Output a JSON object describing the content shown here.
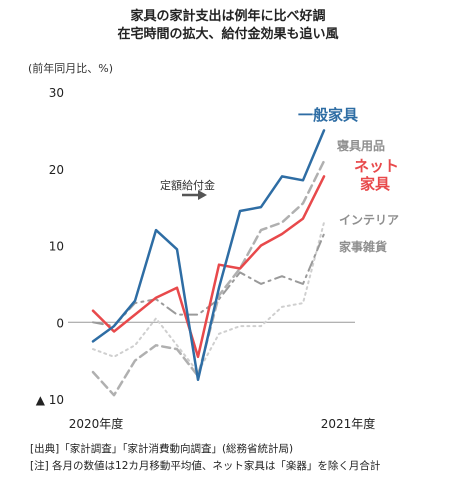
{
  "title_line1": "家具の家計支出は例年に比べ好調",
  "title_line2": "在宅時間の拡大、給付金効果も追い風",
  "unit_label": "(前年同月比、%)",
  "annotation": "定額給付金",
  "source_note": "[出典]「家計調査」「家計消費動向調査」(総務省統計局)",
  "footnote": "[注] 各月の数値は12カ月移動平均値、ネット家具は「楽器」を除く月合計",
  "chart_data": {
    "type": "line",
    "title": "家具の家計支出は例年に比べ好調 在宅時間の拡大、給付金効果も追い風",
    "ylabel": "(前年同月比、%)",
    "ylim": [
      -10,
      30
    ],
    "yticks": [
      {
        "value": 30,
        "label": "30"
      },
      {
        "value": 20,
        "label": "20"
      },
      {
        "value": 10,
        "label": "10"
      },
      {
        "value": 0,
        "label": "0"
      },
      {
        "value": -10,
        "label": "▲ 10"
      }
    ],
    "x_labels": [
      {
        "index": 1,
        "label": "2020年度"
      },
      {
        "index": 13,
        "label": "2021年度"
      }
    ],
    "x_count": 14,
    "grid": false,
    "series": [
      {
        "name": "一般家具",
        "color": "#2E6DA4",
        "style": "solid",
        "width": 2.5,
        "values": [
          -2.5,
          -0.5,
          2.8,
          12,
          9.5,
          -7.5,
          4.5,
          14.5,
          15,
          19,
          18.5,
          25
        ]
      },
      {
        "name": "寝具用品",
        "color": "#b0b0b0",
        "style": "dash",
        "width": 2.5,
        "values": [
          -6.5,
          -9.5,
          -5,
          -3,
          -3.5,
          -7,
          3.5,
          7,
          12,
          13,
          15.5,
          21
        ]
      },
      {
        "name": "ネット家具",
        "color": "#E8494B",
        "style": "solid",
        "width": 2.5,
        "values": [
          1.5,
          -1.2,
          1,
          3.2,
          4.5,
          -4.5,
          7.5,
          7,
          10,
          11.5,
          13.5,
          19
        ]
      },
      {
        "name": "インテリア",
        "color": "#cfcfcf",
        "style": "dot",
        "width": 2,
        "values": [
          -3.5,
          -4.5,
          -3,
          0.5,
          -3,
          -6.5,
          -1.5,
          -0.5,
          -0.5,
          2,
          2.5,
          13
        ]
      },
      {
        "name": "家事雑貨",
        "color": "#9a9a9a",
        "style": "dashdot",
        "width": 2,
        "values": [
          0,
          -0.5,
          2.5,
          3,
          1,
          1,
          3,
          6.5,
          5,
          6,
          5,
          11.5
        ]
      }
    ],
    "legend_labels": [
      {
        "series": 0,
        "lines": [
          "一般家具"
        ],
        "color": "#2E6DA4",
        "size": 15,
        "weight": "bold",
        "x": 0,
        "y": 0
      },
      {
        "series": 1,
        "lines": [
          "寝具用品"
        ],
        "color": "#8f8f8f",
        "size": 12,
        "weight": "bold"
      },
      {
        "series": 2,
        "lines": [
          "ネット",
          "家具"
        ],
        "color": "#E8494B",
        "size": 15,
        "weight": "bold"
      },
      {
        "series": 3,
        "lines": [
          "インテリア"
        ],
        "color": "#8f8f8f",
        "size": 12,
        "weight": "bold"
      },
      {
        "series": 4,
        "lines": [
          "家事雑貨"
        ],
        "color": "#8f8f8f",
        "size": 12,
        "weight": "bold"
      }
    ]
  }
}
